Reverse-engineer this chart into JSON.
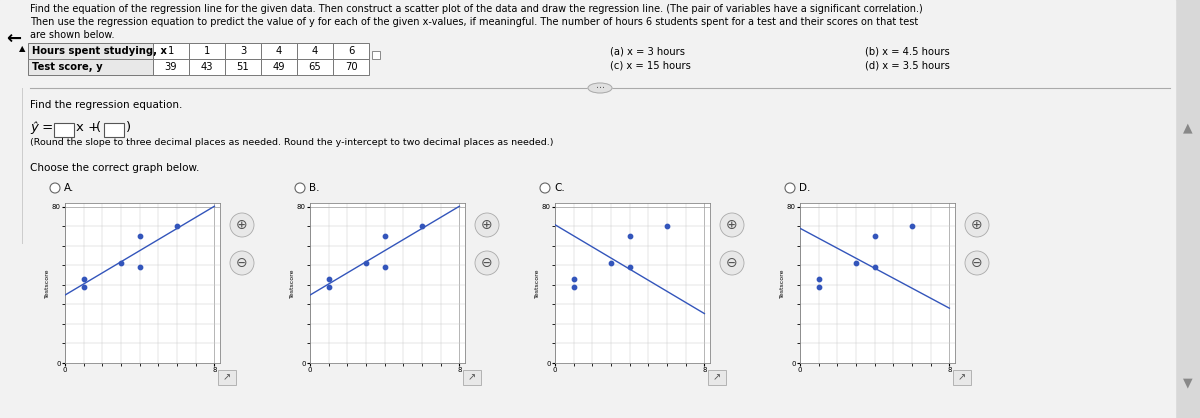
{
  "title_line1": "Find the equation of the regression line for the given data. Then construct a scatter plot of the data and draw the regression line. (The pair of variables have a significant correlation.)",
  "title_line2": "Then use the regression equation to predict the value of y for each of the given x-values, if meaningful. The number of hours 6 students spent for a test and their scores on that test",
  "title_line3": "are shown below.",
  "table_row1_label": "Hours spent studying, x",
  "table_row2_label": "Test score, y",
  "x_data": [
    1,
    1,
    3,
    4,
    4,
    6
  ],
  "y_data": [
    39,
    43,
    51,
    49,
    65,
    70
  ],
  "regression_label": "Find the regression equation.",
  "round_note": "(Round the slope to three decimal places as needed. Round the y-intercept to two decimal places as needed.)",
  "choose_graph": "Choose the correct graph below.",
  "graph_labels": [
    "A.",
    "B.",
    "C.",
    "D."
  ],
  "xvals_col1_line1": "(a) x = 3 hours",
  "xvals_col1_line2": "(c) x = 15 hours",
  "xvals_col2_line1": "(b) x = 4.5 hours",
  "xvals_col2_line2": "(d) x = 3.5 hours",
  "bg_color": "#d8d8d8",
  "panel_color": "#f0f0f0",
  "white": "#ffffff",
  "text_color": "#000000",
  "blue_line": "#3355bb",
  "blue_dot": "#3355bb",
  "table_border": "#777777",
  "sep_color": "#aaaaaa"
}
